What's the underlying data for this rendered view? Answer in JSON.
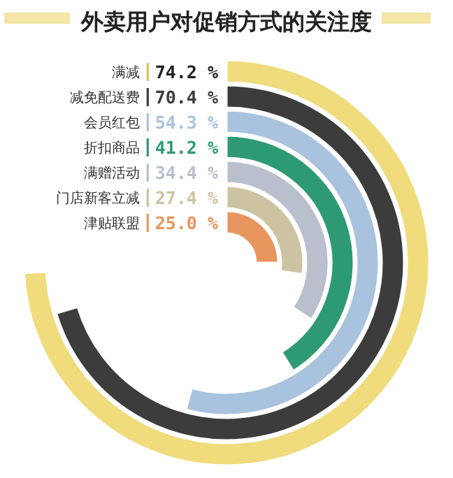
{
  "chart_data": {
    "type": "other",
    "title": "外卖用户对促销方式的关注度",
    "categories": [
      "满减",
      "减免配送费",
      "会员红包",
      "折扣商品",
      "满赠活动",
      "门店新客立减",
      "津贴联盟"
    ],
    "values": [
      74.2,
      70.4,
      54.3,
      41.2,
      34.4,
      27.4,
      25.0
    ],
    "value_labels": [
      "74.2 %",
      "70.4 %",
      "54.3 %",
      "41.2 %",
      "34.4 %",
      "27.4 %",
      "25.0 %"
    ],
    "colors": [
      "#f0dc7c",
      "#3c3c3c",
      "#a9c2de",
      "#2e9a74",
      "#b9bfcc",
      "#cdc3a2",
      "#e9955e"
    ]
  }
}
